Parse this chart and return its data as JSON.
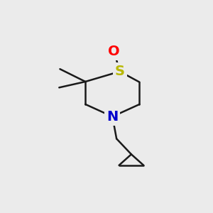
{
  "bg_color": "#ebebeb",
  "atom_colors": {
    "S": "#b8b800",
    "O": "#ff0000",
    "N": "#0000cc"
  },
  "bond_color": "#1a1a1a",
  "bond_lw": 1.8,
  "font_size": 14
}
